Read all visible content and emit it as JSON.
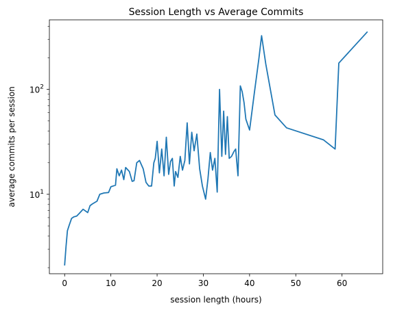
{
  "chart_data": {
    "type": "line",
    "title": "Session Length vs Average Commits",
    "xlabel": "session length (hours)",
    "ylabel": "average commits per session",
    "xscale": "linear",
    "yscale": "log",
    "xlim": [
      -3.3,
      68.8
    ],
    "ylim": [
      1.75,
      460
    ],
    "xticks": [
      0,
      10,
      20,
      30,
      40,
      50,
      60
    ],
    "xtick_labels": [
      "0",
      "10",
      "20",
      "30",
      "40",
      "50",
      "60"
    ],
    "yticks_major": [
      10,
      100
    ],
    "ytick_labels_major": [
      "10^1",
      "10^2"
    ],
    "yticks_minor": [
      2,
      3,
      4,
      5,
      6,
      7,
      8,
      9,
      20,
      30,
      40,
      50,
      60,
      70,
      80,
      90,
      200,
      300,
      400
    ],
    "grid": false,
    "line_color": "#1f77b4",
    "series": [
      {
        "x": [
          0.0,
          0.3,
          0.6,
          1.0,
          1.5,
          2.0,
          2.6,
          3.2,
          4.0,
          5.0,
          5.5,
          6.0,
          7.0,
          7.6,
          8.5,
          9.5,
          10.0,
          11.0,
          11.3,
          11.8,
          12.3,
          12.8,
          13.2,
          14.0,
          14.6,
          15.0,
          15.6,
          16.2,
          17.0,
          17.6,
          18.2,
          18.8,
          19.3,
          19.6,
          20.0,
          20.5,
          21.0,
          21.5,
          22.0,
          22.5,
          22.9,
          23.3,
          23.7,
          24.0,
          24.5,
          25.0,
          25.5,
          26.0,
          26.5,
          27.0,
          27.5,
          28.0,
          28.6,
          29.2,
          29.8,
          30.5,
          31.0,
          31.5,
          32.0,
          32.5,
          33.0,
          33.5,
          34.0,
          34.4,
          34.8,
          35.2,
          35.6,
          36.1,
          36.6,
          37.0,
          37.5,
          38.0,
          38.4,
          38.8,
          39.2,
          40.0,
          41.0,
          42.0,
          42.6,
          43.5,
          45.5,
          48.0,
          56.0,
          58.5,
          59.3,
          65.5
        ],
        "y": [
          2.1,
          3.2,
          4.5,
          5.1,
          5.9,
          6.1,
          6.2,
          6.6,
          7.2,
          6.7,
          7.8,
          8.1,
          8.6,
          10.0,
          10.3,
          10.4,
          11.8,
          12.2,
          17.5,
          15.0,
          17.0,
          13.8,
          18.0,
          16.5,
          13.3,
          13.5,
          20.0,
          21.0,
          17.5,
          13.0,
          12.0,
          12.0,
          20.0,
          22.0,
          32.0,
          16.0,
          27.0,
          15.0,
          35.0,
          15.5,
          20.5,
          22.0,
          12.0,
          16.5,
          14.5,
          23.0,
          17.0,
          21.0,
          48.0,
          19.5,
          39.0,
          26.0,
          37.5,
          17.5,
          12.0,
          9.0,
          14.0,
          25.0,
          17.0,
          22.0,
          10.5,
          100.0,
          23.0,
          62.0,
          24.0,
          55.0,
          22.0,
          23.0,
          25.5,
          27.0,
          15.0,
          108.0,
          95.0,
          75.0,
          52.0,
          41.0,
          90.0,
          195.0,
          325.0,
          175.0,
          57.0,
          43.0,
          33.0,
          27.0,
          178.0,
          355.0
        ]
      }
    ]
  }
}
